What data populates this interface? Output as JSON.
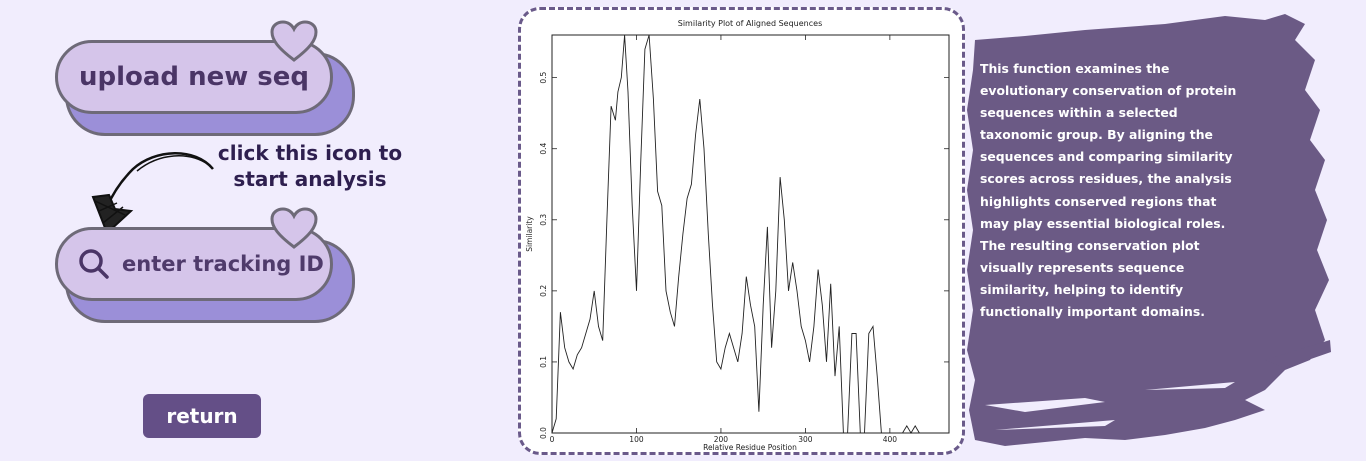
{
  "buttons": {
    "upload_label": "upload new seq",
    "tracking_placeholder": "enter tracking ID",
    "return_label": "return"
  },
  "annotation": {
    "line1": "click this icon to",
    "line2": "start analysis"
  },
  "info": {
    "text": "This function examines the evolutionary conservation of protein sequences within a selected taxonomic group. By aligning the sequences and comparing similarity scores across residues, the analysis highlights conserved regions that may play essential biological roles. The resulting conservation plot visually represents sequence similarity, helping to identify functionally important domains."
  },
  "colors": {
    "background": "#f1edfd",
    "pill_fill": "#d5c5ea",
    "pill_shadow": "#9b8fd8",
    "accent_dark": "#644f87",
    "panel": "#6b5a85"
  },
  "icons": {
    "search": "search-icon",
    "heart": "heart-icon",
    "arrow": "curved-arrow-icon"
  },
  "chart_data": {
    "type": "line",
    "title": "Similarity Plot of Aligned Sequences",
    "xlabel": "Relative Residue Position",
    "ylabel": "Similarity",
    "xlim": [
      0,
      470
    ],
    "ylim": [
      0,
      0.56
    ],
    "xticks": [
      0,
      100,
      200,
      300,
      400
    ],
    "yticks": [
      0.0,
      0.1,
      0.2,
      0.3,
      0.4,
      0.5
    ],
    "ytick_labels": [
      "0.0",
      "0.1",
      "0.2",
      "0.3",
      "0.4",
      "0.5"
    ],
    "grid": false,
    "series": [
      {
        "x": [
          0,
          5,
          10,
          15,
          20,
          25,
          30,
          35,
          40,
          45,
          50,
          55,
          60,
          65,
          70,
          75,
          78,
          82,
          86,
          90,
          95,
          100,
          105,
          110,
          115,
          120,
          125,
          130,
          135,
          140,
          145,
          150,
          155,
          160,
          165,
          170,
          175,
          180,
          185,
          190,
          195,
          200,
          205,
          210,
          215,
          220,
          225,
          230,
          235,
          240,
          245,
          250,
          255,
          260,
          265,
          270,
          275,
          280,
          285,
          290,
          295,
          300,
          305,
          310,
          315,
          320,
          325,
          330,
          335,
          340,
          345,
          350,
          355,
          360,
          365,
          370,
          375,
          380,
          385,
          390,
          395,
          400,
          405,
          410,
          415,
          420,
          425,
          430,
          435,
          440,
          445,
          450,
          455,
          460,
          465
        ],
        "y": [
          0.0,
          0.02,
          0.17,
          0.12,
          0.1,
          0.09,
          0.11,
          0.12,
          0.14,
          0.16,
          0.2,
          0.15,
          0.13,
          0.3,
          0.46,
          0.44,
          0.48,
          0.5,
          0.56,
          0.48,
          0.32,
          0.2,
          0.38,
          0.54,
          0.56,
          0.47,
          0.34,
          0.32,
          0.2,
          0.17,
          0.15,
          0.22,
          0.28,
          0.33,
          0.35,
          0.42,
          0.47,
          0.4,
          0.28,
          0.18,
          0.1,
          0.09,
          0.12,
          0.14,
          0.12,
          0.1,
          0.14,
          0.22,
          0.18,
          0.15,
          0.03,
          0.18,
          0.29,
          0.12,
          0.2,
          0.36,
          0.3,
          0.2,
          0.24,
          0.2,
          0.15,
          0.13,
          0.1,
          0.15,
          0.23,
          0.18,
          0.1,
          0.21,
          0.08,
          0.15,
          0.0,
          0.0,
          0.14,
          0.14,
          0.0,
          0.0,
          0.14,
          0.15,
          0.08,
          0.0,
          0.0,
          0.0,
          0.0,
          0.0,
          0.0,
          0.01,
          0.0,
          0.01,
          0.0,
          0.0,
          0.0,
          0.0,
          0.0,
          0.0,
          0.0
        ]
      }
    ]
  }
}
